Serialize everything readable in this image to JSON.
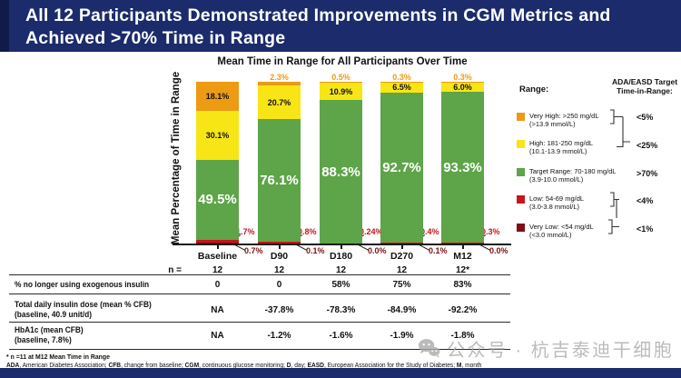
{
  "header": {
    "title_line1": "All 12 Participants Demonstrated Improvements in CGM Metrics and",
    "title_line2": "Achieved >70% Time in Range",
    "bg_color": "#1B2B6B",
    "text_color": "#FFFFFF"
  },
  "chart_data": {
    "type": "bar",
    "stacked": true,
    "title": "Mean Time in Range for All Participants Over Time",
    "xlabel": "",
    "ylabel": "Mean Percentage of Time in Range",
    "ylim": [
      0,
      100
    ],
    "grid": false,
    "categories": [
      "Baseline",
      "D90",
      "D180",
      "D270",
      "M12"
    ],
    "series": [
      {
        "key": "very_high",
        "name": "Very High: >250 mg/dL (>13.9 mmol/L)",
        "color": "#EC9B13",
        "values": [
          18.1,
          2.3,
          0.5,
          0.3,
          0.3
        ]
      },
      {
        "key": "high",
        "name": "High: 181-250 mg/dL (10.1-13.9 mmol/L)",
        "color": "#F7E516",
        "values": [
          30.1,
          20.7,
          10.9,
          6.5,
          6.0
        ]
      },
      {
        "key": "target",
        "name": "Target Range: 70-180 mg/dL (3.9-10.0 mmol/L)",
        "color": "#5EA449",
        "values": [
          49.5,
          76.1,
          88.3,
          92.7,
          93.3
        ]
      },
      {
        "key": "low",
        "name": "Low: 54-69 mg/dL (3.0-3.8 mmol/L)",
        "color": "#C4161C",
        "values": [
          1.7,
          0.8,
          0.24,
          0.4,
          0.3
        ]
      },
      {
        "key": "very_low",
        "name": "Very Low: <54 mg/dL (<3.0 mmol/L)",
        "color": "#7E0E12",
        "values": [
          0.7,
          0.1,
          0.0,
          0.1,
          0.0
        ]
      }
    ],
    "bars": [
      {
        "label": "Baseline",
        "labels": {
          "very_high": "18.1%",
          "high": "30.1%",
          "target": "49.5%",
          "low": "1.7%",
          "very_low": "0.7%"
        }
      },
      {
        "label": "D90",
        "labels": {
          "very_high": "2.3%",
          "high": "20.7%",
          "target": "76.1%",
          "low": "0.8%",
          "very_low": "0.1%"
        }
      },
      {
        "label": "D180",
        "labels": {
          "very_high": "0.5%",
          "high": "10.9%",
          "target": "88.3%",
          "low": "0.24%",
          "very_low": "0.0%"
        }
      },
      {
        "label": "D270",
        "labels": {
          "very_high": "0.3%",
          "high": "6.5%",
          "target": "92.7%",
          "low": "0.4%",
          "very_low": "0.1%"
        }
      },
      {
        "label": "M12",
        "labels": {
          "very_high": "0.3%",
          "high": "6.0%",
          "target": "93.3%",
          "low": "0.3%",
          "very_low": "0.0%"
        }
      }
    ]
  },
  "legend": {
    "range_header": "Range:",
    "target_header_line1": "ADA/EASD Target",
    "target_header_line2": "Time-in-Range:",
    "items": [
      {
        "line1": "Very High: >250 mg/dL",
        "line2": "(>13.9 mmol/L)",
        "color": "#EC9B13",
        "target": "<5%"
      },
      {
        "line1": "High: 181-250 mg/dL",
        "line2": "(10.1-13.9 mmol/L)",
        "color": "#F7E516",
        "target": "<25%"
      },
      {
        "line1": "Target Range: 70-180 mg/dL",
        "line2": "(3.9-10.0 mmol/L)",
        "color": "#5EA449",
        "target": ">70%"
      },
      {
        "line1": "Low: 54-69 mg/dL",
        "line2": "(3.0-3.8 mmol/L)",
        "color": "#C4161C",
        "target": "<4%"
      },
      {
        "line1": "Very Low: <54 mg/dL",
        "line2": "(<3.0 mmol/L)",
        "color": "#7E0E12",
        "target": "<1%"
      }
    ]
  },
  "table": {
    "n_label": "n =",
    "n_values": [
      "12",
      "12",
      "12",
      "12",
      "12*"
    ],
    "rows": [
      {
        "label1": "% no longer using exogenous insulin",
        "label2": "",
        "values": [
          "0",
          "0",
          "58%",
          "75%",
          "83%"
        ]
      },
      {
        "label1": "Total daily insulin dose (mean % CFB)",
        "label2": "(baseline, 40.9 unit/d)",
        "values": [
          "NA",
          "-37.8%",
          "-78.3%",
          "-84.9%",
          "-92.2%"
        ]
      },
      {
        "label1": "HbA1c (mean CFB)",
        "label2": "(baseline, 7.8%)",
        "values": [
          "NA",
          "-1.2%",
          "-1.6%",
          "-1.9%",
          "-1.8%"
        ]
      }
    ]
  },
  "footnotes": {
    "note1": "* n =11 at M12 Mean Time in Range",
    "abbrev": [
      {
        "term": "ADA",
        "desc": ", American Diabetes Association;  "
      },
      {
        "term": "CFB",
        "desc": ", change from baseline; "
      },
      {
        "term": "CGM",
        "desc": ", continuous glucose monitoring; "
      },
      {
        "term": "D",
        "desc": ", day; "
      },
      {
        "term": "EASD",
        "desc": ", European Association for the Study of Diabetes; "
      },
      {
        "term": "M",
        "desc": ", month"
      }
    ]
  },
  "watermark": {
    "text": "公众号 · 杭吉泰迪干细胞"
  }
}
